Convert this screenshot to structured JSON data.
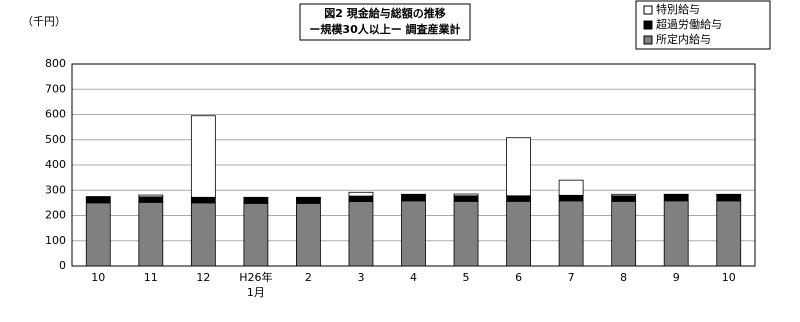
{
  "chart_data": {
    "type": "stacked_bar",
    "title": "図2  現金給与総額の推移",
    "subtitle": "ー規模30人以上ー  調査産業計",
    "y_label": "（千円）",
    "categories": [
      "10",
      "11",
      "12",
      "H26年\n1月",
      "2",
      "3",
      "4",
      "5",
      "6",
      "7",
      "8",
      "9",
      "10"
    ],
    "series": [
      {
        "name": "所定内給与",
        "color": "#808080",
        "values": [
          250,
          252,
          250,
          248,
          248,
          255,
          258,
          256,
          256,
          258,
          256,
          258,
          258
        ]
      },
      {
        "name": "超過労働給与",
        "color": "#000000",
        "values": [
          22,
          22,
          22,
          22,
          22,
          22,
          23,
          22,
          22,
          22,
          22,
          24,
          24
        ]
      },
      {
        "name": "特別給与",
        "color": "#ffffff",
        "values": [
          3,
          7,
          323,
          2,
          2,
          15,
          3,
          7,
          230,
          60,
          6,
          2,
          2
        ]
      }
    ],
    "ylim": [
      0,
      800
    ],
    "yticks": [
      0,
      100,
      200,
      300,
      400,
      500,
      600,
      700,
      800
    ],
    "grid": true
  }
}
